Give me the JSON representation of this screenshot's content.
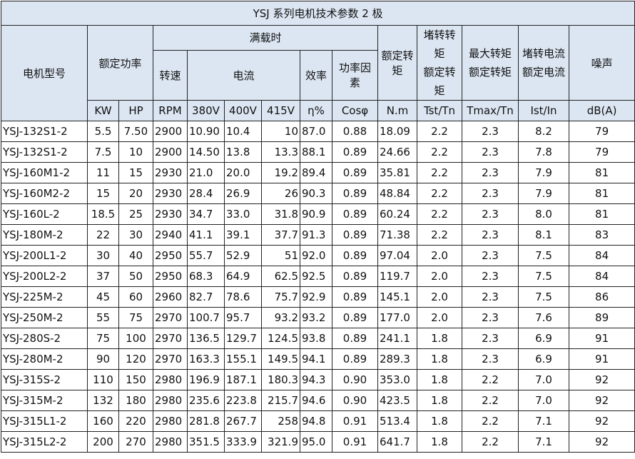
{
  "title": "YSJ 系列电机技术参数 2 极",
  "header": {
    "model": "电机型号",
    "rated_power": "额定功率",
    "full_load": "满载时",
    "speed": "转速",
    "current": "电流",
    "efficiency": "效率",
    "power_factor": "功率因素",
    "rated_torque": "额定转矩",
    "locked_torque_ratio": [
      "堵转转矩",
      "额定转矩"
    ],
    "max_torque_ratio": [
      "最大转矩",
      "额定转矩"
    ],
    "locked_current_ratio": [
      "堵转电流",
      "额定电流"
    ],
    "noise": "噪声"
  },
  "units": [
    "KW",
    "HP",
    "RPM",
    "380V",
    "400V",
    "415V",
    "η%",
    "Cosφ",
    "N.m",
    "Tst/Tn",
    "Tmax/Tn",
    "Ist/In",
    "dB(A)"
  ],
  "rows": [
    [
      "YSJ-132S1-2",
      "5.5",
      "7.50",
      "2900",
      "10.90",
      "10.4",
      "10",
      "87.0",
      "0.88",
      "18.09",
      "2.2",
      "2.3",
      "8.2",
      "79"
    ],
    [
      "YSJ-132S1-2",
      "7.5",
      "10",
      "2900",
      "14.50",
      "13.8",
      "13.3",
      "88.1",
      "0.89",
      "24.66",
      "2.2",
      "2.3",
      "7.8",
      "79"
    ],
    [
      "YSJ-160M1-2",
      "11",
      "15",
      "2930",
      "21.0",
      "20.0",
      "19.2",
      "89.4",
      "0.89",
      "35.81",
      "2.2",
      "2.3",
      "7.9",
      "81"
    ],
    [
      "YSJ-160M2-2",
      "15",
      "20",
      "2930",
      "28.4",
      "26.9",
      "26",
      "90.3",
      "0.89",
      "48.84",
      "2.2",
      "2.3",
      "7.9",
      "81"
    ],
    [
      "YSJ-160L-2",
      "18.5",
      "25",
      "2930",
      "34.7",
      "33.0",
      "31.8",
      "90.9",
      "0.89",
      "60.24",
      "2.2",
      "2.3",
      "8.0",
      "81"
    ],
    [
      "YSJ-180M-2",
      "22",
      "30",
      "2940",
      "41.1",
      "39.1",
      "37.7",
      "91.3",
      "0.89",
      "71.38",
      "2.2",
      "2.3",
      "8.1",
      "83"
    ],
    [
      "YSJ-200L1-2",
      "30",
      "40",
      "2950",
      "55.7",
      "52.9",
      "51",
      "92.0",
      "0.89",
      "97.04",
      "2.0",
      "2.3",
      "7.5",
      "84"
    ],
    [
      "YSJ-200L2-2",
      "37",
      "50",
      "2950",
      "68.3",
      "64.9",
      "62.5",
      "92.5",
      "0.89",
      "119.7",
      "2.0",
      "2.3",
      "7.5",
      "84"
    ],
    [
      "YSJ-225M-2",
      "45",
      "60",
      "2960",
      "82.7",
      "78.6",
      "75.7",
      "92.9",
      "0.89",
      "145.1",
      "2.0",
      "2.3",
      "7.5",
      "86"
    ],
    [
      "YSJ-250M-2",
      "55",
      "75",
      "2970",
      "100.7",
      "95.7",
      "93.2",
      "93.2",
      "0.89",
      "177.0",
      "2.0",
      "2.3",
      "7.6",
      "89"
    ],
    [
      "YSJ-280S-2",
      "75",
      "100",
      "2970",
      "136.5",
      "129.7",
      "124.5",
      "93.8",
      "0.89",
      "241.1",
      "1.8",
      "2.3",
      "6.9",
      "91"
    ],
    [
      "YSJ-280M-2",
      "90",
      "120",
      "2970",
      "163.3",
      "155.1",
      "149.5",
      "94.1",
      "0.89",
      "289.3",
      "1.8",
      "2.3",
      "6.9",
      "91"
    ],
    [
      "YSJ-315S-2",
      "110",
      "150",
      "2980",
      "196.9",
      "187.1",
      "180.3",
      "94.3",
      "0.90",
      "353.0",
      "1.8",
      "2.2",
      "7.0",
      "92"
    ],
    [
      "YSJ-315M-2",
      "132",
      "180",
      "2980",
      "235.6",
      "223.8",
      "215.7",
      "94.6",
      "0.90",
      "423.5",
      "1.8",
      "2.2",
      "7.0",
      "92"
    ],
    [
      "YSJ-315L1-2",
      "160",
      "220",
      "2980",
      "281.8",
      "267.7",
      "258",
      "94.8",
      "0.91",
      "513.4",
      "1.8",
      "2.2",
      "7.1",
      "92"
    ],
    [
      "YSJ-315L2-2",
      "200",
      "270",
      "2980",
      "351.5",
      "333.9",
      "321.9",
      "95.0",
      "0.91",
      "641.7",
      "1.8",
      "2.2",
      "7.1",
      "92"
    ]
  ]
}
